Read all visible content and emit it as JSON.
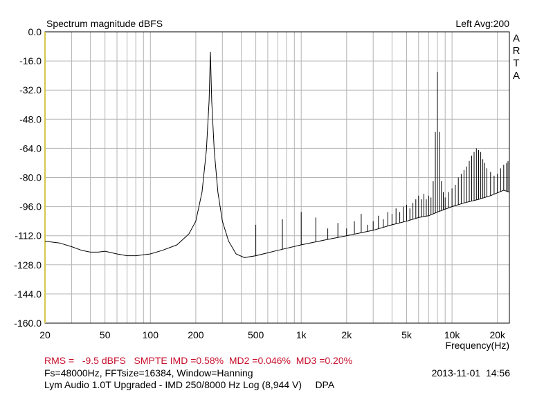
{
  "chart_data": {
    "type": "line",
    "title": "Spectrum magnitude dBFS",
    "top_right": "Left  Avg:200",
    "watermark": [
      "A",
      "R",
      "T",
      "A"
    ],
    "xlabel": "Frequency(Hz)",
    "ylabel": "",
    "x_scale": "log",
    "xlim": [
      20,
      24000
    ],
    "ylim": [
      -160,
      0
    ],
    "grid": true,
    "x_ticks": [
      {
        "value": 20,
        "label": "20"
      },
      {
        "value": 50,
        "label": "50"
      },
      {
        "value": 100,
        "label": "100"
      },
      {
        "value": 200,
        "label": "200"
      },
      {
        "value": 500,
        "label": "500"
      },
      {
        "value": 1000,
        "label": "1k"
      },
      {
        "value": 2000,
        "label": "2k"
      },
      {
        "value": 5000,
        "label": "5k"
      },
      {
        "value": 10000,
        "label": "10k"
      },
      {
        "value": 20000,
        "label": "20k"
      }
    ],
    "y_ticks": [
      "0.0",
      "-16.0",
      "-32.0",
      "-48.0",
      "-64.0",
      "-80.0",
      "-96.0",
      "-112.0",
      "-128.0",
      "-144.0",
      "-160.0"
    ],
    "series": [
      {
        "color": "#000000",
        "noise_floor": [
          [
            20,
            -115
          ],
          [
            25,
            -116
          ],
          [
            30,
            -118
          ],
          [
            35,
            -120
          ],
          [
            40,
            -121
          ],
          [
            45,
            -121
          ],
          [
            50,
            -120.5
          ],
          [
            60,
            -122
          ],
          [
            70,
            -123
          ],
          [
            80,
            -123
          ],
          [
            100,
            -122
          ],
          [
            120,
            -120
          ],
          [
            150,
            -117
          ],
          [
            180,
            -111
          ],
          [
            200,
            -104
          ],
          [
            220,
            -88
          ],
          [
            235,
            -65
          ],
          [
            245,
            -38
          ],
          [
            250,
            -11
          ],
          [
            255,
            -38
          ],
          [
            265,
            -65
          ],
          [
            280,
            -88
          ],
          [
            300,
            -104
          ],
          [
            330,
            -115
          ],
          [
            370,
            -122
          ],
          [
            420,
            -124
          ],
          [
            500,
            -123
          ],
          [
            700,
            -120
          ],
          [
            1000,
            -117
          ],
          [
            1500,
            -114
          ],
          [
            2000,
            -112
          ],
          [
            3000,
            -109
          ],
          [
            4000,
            -106
          ],
          [
            5000,
            -104
          ],
          [
            6000,
            -102
          ],
          [
            7000,
            -101
          ],
          [
            8000,
            -99
          ],
          [
            10000,
            -96
          ],
          [
            12000,
            -94
          ],
          [
            15000,
            -92
          ],
          [
            18000,
            -90
          ],
          [
            22000,
            -87
          ],
          [
            24000,
            -88
          ]
        ],
        "peaks": [
          [
            500,
            -106
          ],
          [
            750,
            -103
          ],
          [
            1000,
            -99
          ],
          [
            1250,
            -102
          ],
          [
            1500,
            -108
          ],
          [
            1750,
            -105
          ],
          [
            2000,
            -108
          ],
          [
            2250,
            -104
          ],
          [
            2500,
            -100
          ],
          [
            2750,
            -106
          ],
          [
            3000,
            -104
          ],
          [
            3250,
            -101
          ],
          [
            3500,
            -103
          ],
          [
            3750,
            -99
          ],
          [
            4000,
            -100
          ],
          [
            4250,
            -97
          ],
          [
            4500,
            -99
          ],
          [
            4750,
            -96
          ],
          [
            5000,
            -95
          ],
          [
            5250,
            -97
          ],
          [
            5500,
            -94
          ],
          [
            5750,
            -92
          ],
          [
            6000,
            -90
          ],
          [
            6250,
            -92
          ],
          [
            6500,
            -89
          ],
          [
            6750,
            -92
          ],
          [
            7000,
            -90
          ],
          [
            7250,
            -91
          ],
          [
            7500,
            -82
          ],
          [
            7750,
            -55
          ],
          [
            8000,
            -22
          ],
          [
            8250,
            -55
          ],
          [
            8500,
            -82
          ],
          [
            8750,
            -88
          ],
          [
            9000,
            -91
          ],
          [
            9500,
            -88
          ],
          [
            10000,
            -86
          ],
          [
            10500,
            -84
          ],
          [
            11000,
            -80
          ],
          [
            11500,
            -78
          ],
          [
            12000,
            -76
          ],
          [
            12500,
            -74
          ],
          [
            13000,
            -71
          ],
          [
            13500,
            -68
          ],
          [
            14000,
            -66
          ],
          [
            14500,
            -64
          ],
          [
            15000,
            -65
          ],
          [
            15500,
            -66
          ],
          [
            16000,
            -70
          ],
          [
            16500,
            -72
          ],
          [
            17000,
            -75
          ],
          [
            18000,
            -77
          ],
          [
            19000,
            -79
          ],
          [
            20000,
            -78
          ],
          [
            21000,
            -75
          ],
          [
            22000,
            -73
          ],
          [
            23000,
            -72
          ],
          [
            23500,
            -71
          ]
        ]
      }
    ]
  },
  "footer": {
    "measurements": "RMS =   -9.5 dBFS   SMPTE IMD =0.58%  MD2 =0.046%  MD3 =0.20%",
    "params": "Fs=48000Hz, FFTsize=16384, Window=Hanning",
    "datetime": "2013-11-01  14:56",
    "description": "Lym Audio 1.0T Upgraded - IMD 250/8000 Hz Log (8,944 V)     DPA"
  }
}
